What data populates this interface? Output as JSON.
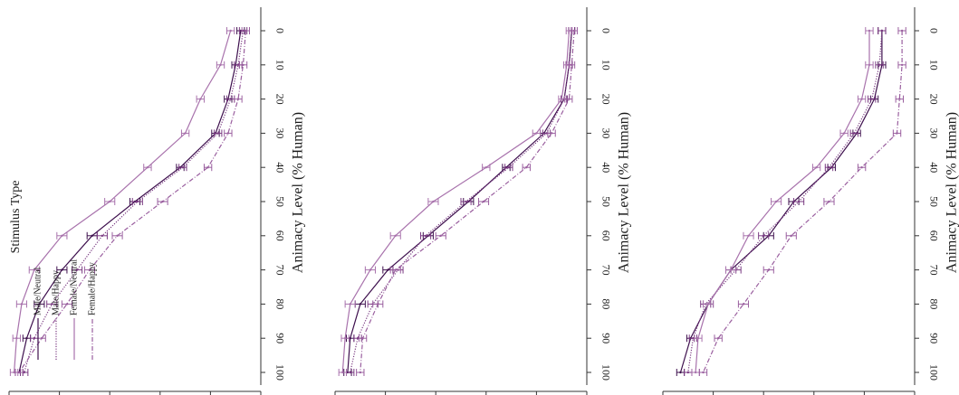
{
  "legend": {
    "title": "Stimulus Type",
    "entries": [
      {
        "label": "Male/Neutral",
        "color": "#3d0f4d",
        "dash": "solid"
      },
      {
        "label": "Male/Happy",
        "color": "#7a3a82",
        "dash": "dotted"
      },
      {
        "label": "Female/Neutral",
        "color": "#a872ac",
        "dash": "solid"
      },
      {
        "label": "Female/Happy",
        "color": "#9a5f9f",
        "dash": "dashdot"
      }
    ]
  },
  "chart_data": [
    {
      "type": "line",
      "orientation": "rotated-90-clockwise",
      "x": [
        0,
        10,
        20,
        30,
        40,
        50,
        60,
        70,
        80,
        90,
        100
      ],
      "xlabel": "Animacy Level (% Human)",
      "ylabel": "",
      "ylim": [
        0,
        1
      ],
      "legend_placement": "top-left",
      "series": [
        {
          "name": "Male/Neutral",
          "values": [
            0.08,
            0.1,
            0.13,
            0.18,
            0.32,
            0.5,
            0.67,
            0.79,
            0.88,
            0.93,
            0.96
          ],
          "errors": [
            0.015,
            0.015,
            0.015,
            0.015,
            0.015,
            0.02,
            0.02,
            0.02,
            0.02,
            0.015,
            0.015
          ]
        },
        {
          "name": "Male/Happy",
          "values": [
            0.07,
            0.09,
            0.12,
            0.17,
            0.31,
            0.49,
            0.63,
            0.73,
            0.83,
            0.9,
            0.94
          ],
          "errors": [
            0.015,
            0.015,
            0.015,
            0.015,
            0.015,
            0.02,
            0.02,
            0.02,
            0.02,
            0.015,
            0.015
          ]
        },
        {
          "name": "Female/Neutral",
          "values": [
            0.12,
            0.16,
            0.24,
            0.3,
            0.45,
            0.6,
            0.79,
            0.9,
            0.95,
            0.97,
            0.98
          ],
          "errors": [
            0.015,
            0.015,
            0.015,
            0.015,
            0.015,
            0.02,
            0.02,
            0.02,
            0.02,
            0.015,
            0.015
          ]
        },
        {
          "name": "Female/Happy",
          "values": [
            0.06,
            0.07,
            0.09,
            0.13,
            0.21,
            0.39,
            0.57,
            0.68,
            0.77,
            0.87,
            0.96
          ],
          "errors": [
            0.015,
            0.015,
            0.015,
            0.015,
            0.015,
            0.02,
            0.02,
            0.02,
            0.02,
            0.015,
            0.015
          ]
        }
      ]
    },
    {
      "type": "line",
      "orientation": "rotated-90-clockwise",
      "x": [
        0,
        10,
        20,
        30,
        40,
        50,
        60,
        70,
        80,
        90,
        100
      ],
      "xlabel": "Animacy Level (% Human)",
      "ylabel": "",
      "ylim": [
        0,
        1
      ],
      "series": [
        {
          "name": "Male/Neutral",
          "values": [
            0.06,
            0.07,
            0.09,
            0.17,
            0.32,
            0.47,
            0.63,
            0.79,
            0.9,
            0.94,
            0.95
          ],
          "errors": [
            0.012,
            0.012,
            0.012,
            0.015,
            0.015,
            0.02,
            0.02,
            0.02,
            0.02,
            0.015,
            0.015
          ]
        },
        {
          "name": "Male/Happy",
          "values": [
            0.06,
            0.07,
            0.09,
            0.16,
            0.31,
            0.48,
            0.64,
            0.75,
            0.85,
            0.91,
            0.94
          ],
          "errors": [
            0.012,
            0.012,
            0.012,
            0.015,
            0.015,
            0.02,
            0.02,
            0.02,
            0.02,
            0.015,
            0.015
          ]
        },
        {
          "name": "Female/Neutral",
          "values": [
            0.07,
            0.08,
            0.1,
            0.2,
            0.4,
            0.61,
            0.76,
            0.86,
            0.94,
            0.96,
            0.97
          ],
          "errors": [
            0.012,
            0.012,
            0.012,
            0.015,
            0.015,
            0.02,
            0.02,
            0.02,
            0.02,
            0.015,
            0.015
          ]
        },
        {
          "name": "Female/Happy",
          "values": [
            0.05,
            0.06,
            0.07,
            0.14,
            0.24,
            0.41,
            0.58,
            0.76,
            0.83,
            0.89,
            0.9
          ],
          "errors": [
            0.012,
            0.012,
            0.012,
            0.015,
            0.015,
            0.02,
            0.02,
            0.02,
            0.02,
            0.015,
            0.015
          ]
        }
      ]
    },
    {
      "type": "line",
      "orientation": "rotated-90-clockwise",
      "x": [
        0,
        10,
        20,
        30,
        40,
        50,
        60,
        70,
        80,
        90,
        100
      ],
      "xlabel": "Animacy Level (% Human)",
      "ylabel": "",
      "ylim": [
        0,
        1
      ],
      "series": [
        {
          "name": "Male/Neutral",
          "values": [
            0.13,
            0.13,
            0.16,
            0.23,
            0.33,
            0.48,
            0.58,
            0.73,
            0.82,
            0.89,
            0.93
          ],
          "errors": [
            0.015,
            0.015,
            0.015,
            0.015,
            0.015,
            0.02,
            0.02,
            0.02,
            0.02,
            0.015,
            0.015
          ]
        },
        {
          "name": "Male/Happy",
          "values": [
            0.13,
            0.14,
            0.17,
            0.24,
            0.34,
            0.46,
            0.6,
            0.71,
            0.83,
            0.88,
            0.9
          ],
          "errors": [
            0.015,
            0.015,
            0.015,
            0.015,
            0.015,
            0.02,
            0.02,
            0.02,
            0.02,
            0.015,
            0.015
          ]
        },
        {
          "name": "Female/Neutral",
          "values": [
            0.18,
            0.18,
            0.21,
            0.28,
            0.39,
            0.55,
            0.66,
            0.73,
            0.82,
            0.86,
            0.87
          ],
          "errors": [
            0.015,
            0.015,
            0.015,
            0.015,
            0.015,
            0.02,
            0.02,
            0.02,
            0.02,
            0.015,
            0.015
          ]
        },
        {
          "name": "Female/Happy",
          "values": [
            0.05,
            0.05,
            0.06,
            0.07,
            0.21,
            0.34,
            0.49,
            0.58,
            0.68,
            0.78,
            0.84
          ],
          "errors": [
            0.015,
            0.015,
            0.015,
            0.015,
            0.015,
            0.02,
            0.02,
            0.02,
            0.02,
            0.015,
            0.015
          ]
        }
      ]
    }
  ]
}
